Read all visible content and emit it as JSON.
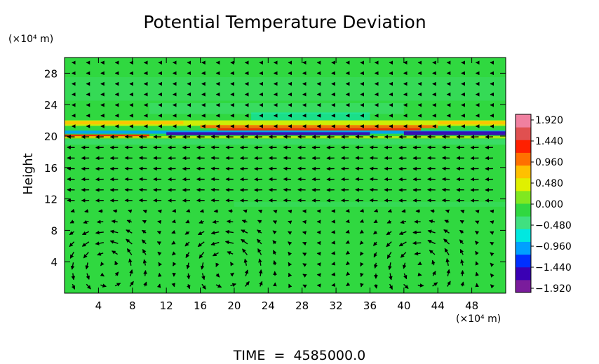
{
  "chart_data": {
    "type": "heatmap",
    "title": "Potential Temperature Deviation",
    "ylabel": "Height",
    "xunit": "(×10⁴ m)",
    "yunit": "(×10⁴ m)",
    "xlim": [
      0,
      52
    ],
    "ylim": [
      0,
      30
    ],
    "xticks": [
      "4",
      "8",
      "12",
      "16",
      "20",
      "24",
      "28",
      "32",
      "36",
      "40",
      "44",
      "48"
    ],
    "xtick_values": [
      4,
      8,
      12,
      16,
      20,
      24,
      28,
      32,
      36,
      40,
      44,
      48
    ],
    "yticks": [
      "4",
      "8",
      "12",
      "16",
      "20",
      "24",
      "28"
    ],
    "ytick_values": [
      4,
      8,
      12,
      16,
      20,
      24,
      28
    ],
    "colorbar": {
      "labels": [
        "1.920",
        "1.440",
        "0.960",
        "0.480",
        "0.000",
        "−0.480",
        "−0.960",
        "−1.440",
        "−1.920"
      ],
      "values": [
        1.92,
        1.44,
        0.96,
        0.48,
        0.0,
        -0.48,
        -0.96,
        -1.44,
        -1.92
      ],
      "colors": [
        "#7a1c9c",
        "#3a00b4",
        "#0030ff",
        "#00a0ff",
        "#00e8e0",
        "#40e080",
        "#30d840",
        "#80e820",
        "#e0f000",
        "#ffc000",
        "#ff7000",
        "#ff2000",
        "#e05050",
        "#f080a0"
      ]
    },
    "background_value": 0.0,
    "features": [
      {
        "kind": "stable-layer-band",
        "y_center": 20.5,
        "note_values": [
          1.92,
          -1.92
        ]
      }
    ],
    "vector_field": "velocity arrows on grid, convective cells below ~10 with centers near x=5, 19, 42",
    "footer": "TIME  =  4585000.0"
  },
  "colors": {
    "field_green": "#30d840",
    "axis": "#000000"
  }
}
